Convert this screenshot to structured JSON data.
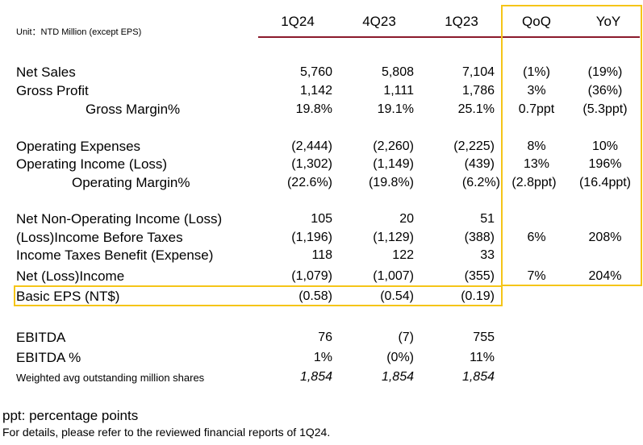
{
  "unit_label": "Unit：NTD Million (except EPS)",
  "columns": [
    "1Q24",
    "4Q23",
    "1Q23",
    "QoQ",
    "YoY"
  ],
  "rows": [
    {
      "label": "Net Sales",
      "v1": "5,760",
      "v2": "5,808",
      "v3": "7,104",
      "qoq": "(1%)",
      "yoy": "(19%)"
    },
    {
      "label": "Gross Profit",
      "v1": "1,142",
      "v2": "1,111",
      "v3": "1,786",
      "qoq": "3%",
      "yoy": "(36%)"
    },
    {
      "label": "Gross Margin%",
      "v1": "19.8%",
      "v2": "19.1%",
      "v3": "25.1%",
      "qoq": "0.7ppt",
      "yoy": "(5.3ppt)"
    },
    {
      "label": "Operating Expenses",
      "v1": "(2,444)",
      "v2": "(2,260)",
      "v3": "(2,225)",
      "qoq": "8%",
      "yoy": "10%"
    },
    {
      "label": "Operating Income (Loss)",
      "v1": "(1,302)",
      "v2": "(1,149)",
      "v3": "(439)",
      "qoq": "13%",
      "yoy": "196%"
    },
    {
      "label": "Operating Margin%",
      "v1": "(22.6%)",
      "v2": "(19.8%)",
      "v3": "(6.2%)",
      "qoq": "(2.8ppt)",
      "yoy": "(16.4ppt)"
    },
    {
      "label": "Net Non-Operating Income (Loss)",
      "v1": "105",
      "v2": "20",
      "v3": "51",
      "qoq": "",
      "yoy": ""
    },
    {
      "label": "(Loss)Income Before Taxes",
      "v1": "(1,196)",
      "v2": "(1,129)",
      "v3": "(388)",
      "qoq": "6%",
      "yoy": "208%"
    },
    {
      "label": "Income Taxes Benefit (Expense)",
      "v1": "118",
      "v2": "122",
      "v3": "33",
      "qoq": "",
      "yoy": ""
    },
    {
      "label": "Net (Loss)Income",
      "v1": "(1,079)",
      "v2": "(1,007)",
      "v3": "(355)",
      "qoq": "7%",
      "yoy": "204%"
    },
    {
      "label": "Basic EPS (NT$)",
      "v1": "(0.58)",
      "v2": "(0.54)",
      "v3": "(0.19)",
      "qoq": "",
      "yoy": ""
    },
    {
      "label": "EBITDA",
      "v1": "76",
      "v2": "(7)",
      "v3": "755",
      "qoq": "",
      "yoy": ""
    },
    {
      "label": "EBITDA %",
      "v1": "1%",
      "v2": "(0%)",
      "v3": "11%",
      "qoq": "",
      "yoy": ""
    },
    {
      "label": "Weighted avg outstanding million shares",
      "v1": "1,854",
      "v2": "1,854",
      "v3": "1,854",
      "qoq": "",
      "yoy": ""
    }
  ],
  "footnotes": {
    "line1": "ppt: percentage points",
    "line2": "For details, please refer to the reviewed financial reports of 1Q24."
  },
  "colors": {
    "header_rule": "#8b1a2b",
    "highlight_box": "#f5c518"
  }
}
